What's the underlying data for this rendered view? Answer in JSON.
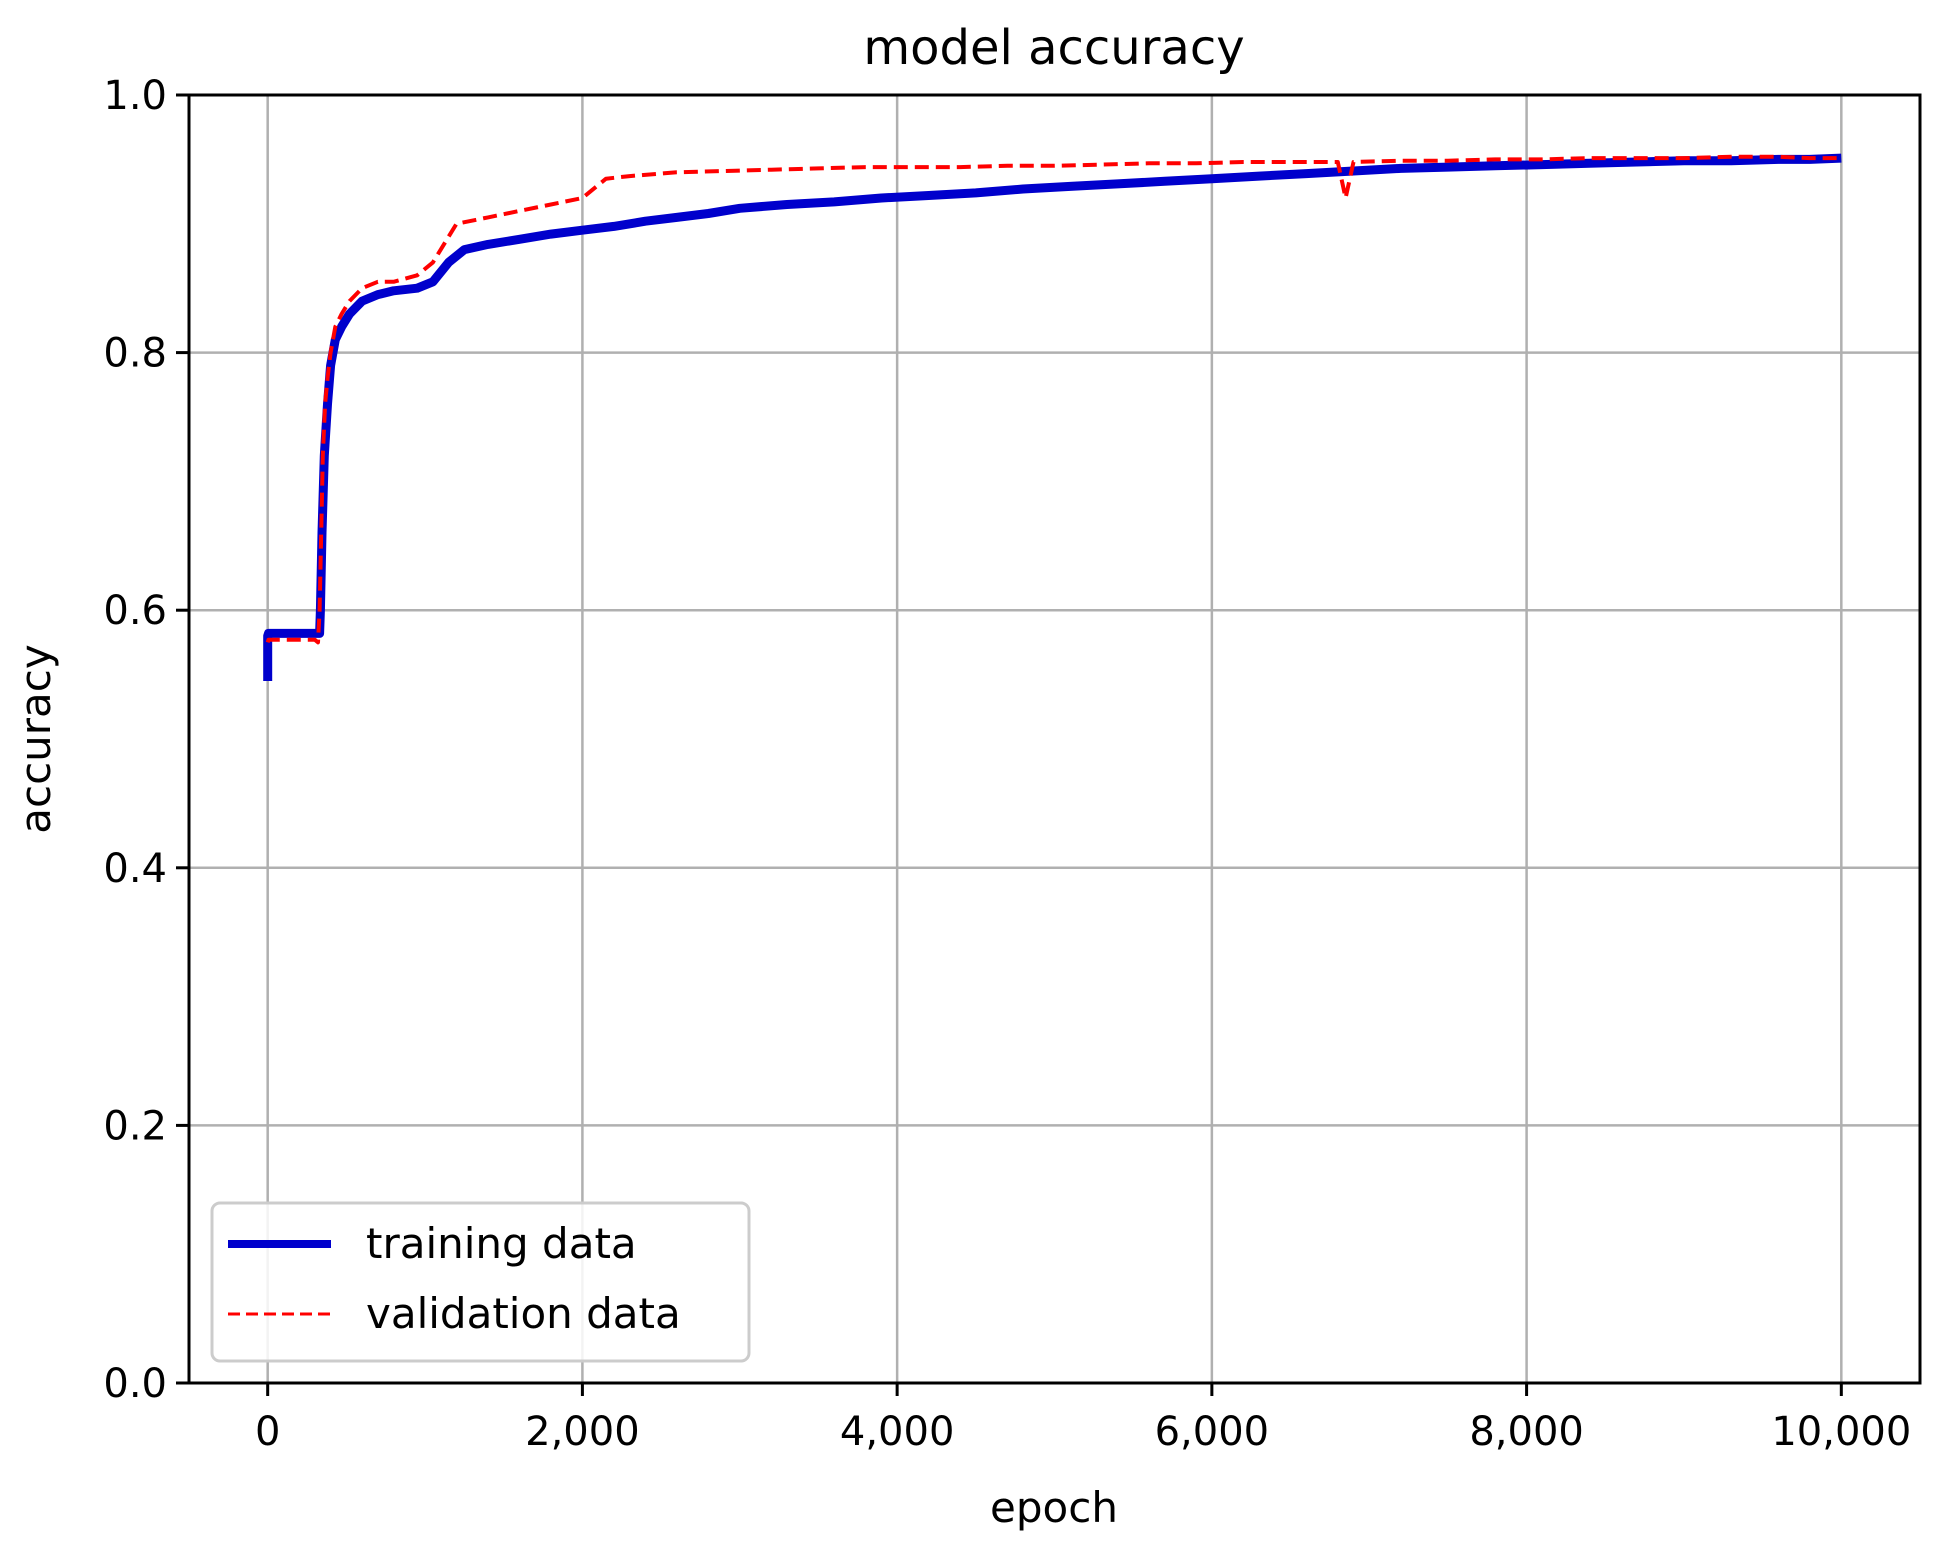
{
  "chart_data": {
    "type": "line",
    "title": "model accuracy",
    "xlabel": "epoch",
    "ylabel": "accuracy",
    "xlim": [
      -500,
      10500
    ],
    "ylim": [
      0.0,
      1.0
    ],
    "grid": true,
    "legend_position": "lower-left",
    "xticks": [
      0,
      2000,
      4000,
      6000,
      8000,
      10000
    ],
    "xtick_labels": [
      "0",
      "2,000",
      "4,000",
      "6,000",
      "8,000",
      "10,000"
    ],
    "yticks": [
      0.0,
      0.2,
      0.4,
      0.6,
      0.8,
      1.0
    ],
    "ytick_labels": [
      "0.0",
      "0.2",
      "0.4",
      "0.6",
      "0.8",
      "1.0"
    ],
    "series": [
      {
        "name": "training data",
        "color": "#0000cc",
        "style": "solid",
        "x": [
          0,
          0,
          5,
          330,
          335,
          345,
          360,
          380,
          400,
          430,
          470,
          520,
          600,
          700,
          800,
          950,
          1050,
          1150,
          1250,
          1400,
          1600,
          1800,
          2000,
          2200,
          2400,
          2600,
          2800,
          3000,
          3300,
          3600,
          3900,
          4200,
          4500,
          4800,
          5100,
          5400,
          5700,
          6000,
          6300,
          6600,
          6900,
          7200,
          7500,
          7800,
          8100,
          8400,
          8700,
          9000,
          9300,
          9600,
          9800,
          10000
        ],
        "y": [
          0.545,
          0.58,
          0.582,
          0.582,
          0.6,
          0.66,
          0.72,
          0.76,
          0.79,
          0.81,
          0.82,
          0.83,
          0.84,
          0.845,
          0.848,
          0.85,
          0.855,
          0.87,
          0.88,
          0.884,
          0.888,
          0.892,
          0.895,
          0.898,
          0.902,
          0.905,
          0.908,
          0.912,
          0.915,
          0.917,
          0.92,
          0.922,
          0.924,
          0.927,
          0.929,
          0.931,
          0.933,
          0.935,
          0.937,
          0.939,
          0.941,
          0.943,
          0.944,
          0.945,
          0.946,
          0.947,
          0.948,
          0.949,
          0.949,
          0.95,
          0.95,
          0.951
        ]
      },
      {
        "name": "validation data",
        "color": "#ff0000",
        "style": "dashed",
        "x": [
          0,
          5,
          300,
          320,
          330,
          340,
          350,
          365,
          380,
          400,
          430,
          470,
          520,
          600,
          700,
          800,
          950,
          1050,
          1150,
          1200,
          1400,
          1600,
          1800,
          2000,
          2150,
          2300,
          2600,
          2900,
          3200,
          3500,
          3800,
          4100,
          4400,
          4700,
          5000,
          5300,
          5600,
          5900,
          6200,
          6500,
          6800,
          6850,
          6900,
          7200,
          7500,
          7800,
          8100,
          8400,
          8700,
          9000,
          9300,
          9600,
          9800,
          10000
        ],
        "y": [
          0.575,
          0.577,
          0.577,
          0.575,
          0.6,
          0.66,
          0.72,
          0.76,
          0.78,
          0.8,
          0.82,
          0.83,
          0.84,
          0.85,
          0.855,
          0.855,
          0.86,
          0.87,
          0.89,
          0.9,
          0.905,
          0.91,
          0.915,
          0.92,
          0.935,
          0.937,
          0.94,
          0.941,
          0.942,
          0.943,
          0.944,
          0.944,
          0.944,
          0.945,
          0.945,
          0.946,
          0.947,
          0.947,
          0.948,
          0.948,
          0.948,
          0.92,
          0.948,
          0.949,
          0.949,
          0.95,
          0.95,
          0.951,
          0.951,
          0.951,
          0.952,
          0.952,
          0.951,
          0.951
        ]
      }
    ]
  }
}
